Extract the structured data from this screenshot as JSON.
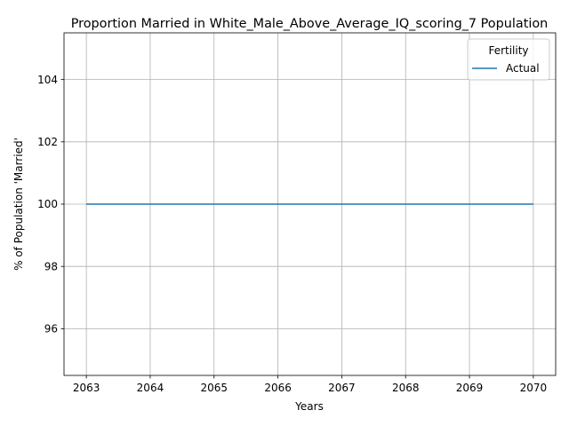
{
  "chart_data": {
    "type": "line",
    "title": "Proportion Married in White_Male_Above_Average_IQ_scoring_7 Population",
    "xlabel": "Years",
    "ylabel": "% of Population 'Married'",
    "x": [
      2063,
      2064,
      2065,
      2066,
      2067,
      2068,
      2069,
      2070
    ],
    "series": [
      {
        "name": "Actual",
        "color": "#1f77b4",
        "values": [
          100,
          100,
          100,
          100,
          100,
          100,
          100,
          100
        ]
      }
    ],
    "xlim": [
      2062.65,
      2070.35
    ],
    "ylim": [
      94.5,
      105.5
    ],
    "xticks": [
      "2063",
      "2064",
      "2065",
      "2066",
      "2067",
      "2068",
      "2069",
      "2070"
    ],
    "yticks": [
      "96",
      "98",
      "100",
      "102",
      "104"
    ],
    "ytick_values": [
      96,
      98,
      100,
      102,
      104
    ],
    "grid": true,
    "legend": {
      "title": "Fertility",
      "placement": "top-right"
    }
  }
}
